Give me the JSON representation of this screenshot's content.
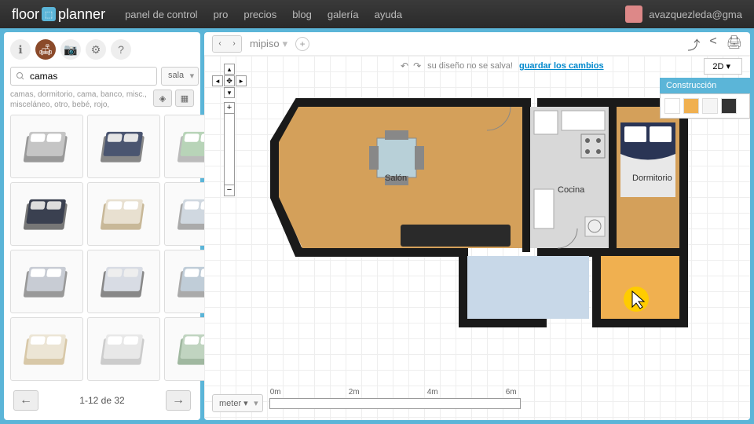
{
  "brand": {
    "text1": "floor",
    "text2": "planner"
  },
  "nav": [
    "panel de control",
    "pro",
    "precios",
    "blog",
    "galería",
    "ayuda"
  ],
  "user": {
    "email": "avazquezleda@gma"
  },
  "search": {
    "value": "camas",
    "category": "sala"
  },
  "tags": "camas, dormitorio, cama, banco, misc., misceláneo, otro, bebé, rojo,",
  "pagination": {
    "text": "1-12 de 32"
  },
  "project": {
    "name": "mipiso"
  },
  "status": {
    "text": "su diseño no se salva!",
    "link": "guardar los cambios"
  },
  "view_mode": "2D ▾",
  "panel": {
    "title": "Construcción"
  },
  "rooms": {
    "salon": "Salón",
    "cocina": "Cocina",
    "dormitorio": "Dormitorio"
  },
  "scale": {
    "unit": "meter ▾",
    "ticks": [
      "0m",
      "2m",
      "4m",
      "6m"
    ]
  },
  "colors": {
    "wood_floor": "#d4a05a",
    "tile_floor": "#d8d8d8",
    "wall": "#1a1a1a",
    "bed_navy": "#2a3555",
    "accent": "#5bb5d8",
    "orange": "#f0b050"
  },
  "beds": [
    {
      "frame": "#999",
      "mattress": "#c5c5c5",
      "pillow": "#fff"
    },
    {
      "frame": "#888",
      "mattress": "#4a5570",
      "pillow": "#e5e5e5"
    },
    {
      "frame": "#bbb",
      "mattress": "#b8d4b8",
      "pillow": "#fff"
    },
    {
      "frame": "#777",
      "mattress": "#3a4050",
      "pillow": "#ddd"
    },
    {
      "frame": "#c8b898",
      "mattress": "#e8e0d0",
      "pillow": "#fff"
    },
    {
      "frame": "#aaa",
      "mattress": "#d0d8e0",
      "pillow": "#fff"
    },
    {
      "frame": "#999",
      "mattress": "#c8ccd4",
      "pillow": "#fff"
    },
    {
      "frame": "#888",
      "mattress": "#d8dce4",
      "pillow": "#eee"
    },
    {
      "frame": "#aaa",
      "mattress": "#c0cdd8",
      "pillow": "#fff"
    },
    {
      "frame": "#d8c8a8",
      "mattress": "#ece5d5",
      "pillow": "#fff"
    },
    {
      "frame": "#ccc",
      "mattress": "#e8e8e8",
      "pillow": "#fff"
    },
    {
      "frame": "#a0b8a0",
      "mattress": "#c0d4c0",
      "pillow": "#fff"
    }
  ]
}
